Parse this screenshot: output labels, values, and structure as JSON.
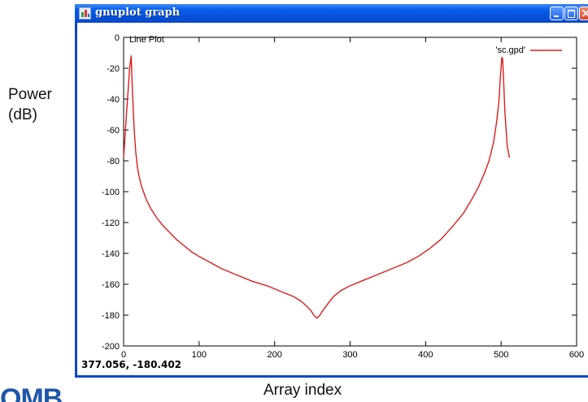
{
  "figure": {
    "outer_ylabel_line1": "Power",
    "outer_ylabel_line2": "(dB)",
    "outer_xlabel": "Array index",
    "logo_text": "OMB"
  },
  "window": {
    "title": "gnuplot graph",
    "icon": "gnuplot-graph-icon",
    "buttons": {
      "minimize": "minimize-icon",
      "maximize": "maximize-icon",
      "close": "close-icon"
    },
    "status_coords": "377.056, -180.402"
  },
  "colors": {
    "series": "#dd1c1c",
    "titlebar": "#0a5ee8",
    "frame": "#0a47c9"
  },
  "chart_data": {
    "type": "line",
    "title": "Line Plot",
    "xlabel": "",
    "ylabel": "",
    "xlim": [
      0,
      600
    ],
    "ylim": [
      -200,
      0
    ],
    "xticks": [
      0,
      100,
      200,
      300,
      400,
      500,
      600
    ],
    "yticks": [
      0,
      -20,
      -40,
      -60,
      -80,
      -100,
      -120,
      -140,
      -160,
      -180,
      -200
    ],
    "grid": false,
    "legend": "top-right",
    "series": [
      {
        "name": "'sc.gpd'",
        "color": "#dd1c1c",
        "x": [
          0,
          2,
          4,
          6,
          8,
          10,
          12,
          14,
          16,
          18,
          20,
          24,
          30,
          36,
          44,
          52,
          60,
          70,
          80,
          90,
          100,
          115,
          130,
          150,
          170,
          190,
          210,
          225,
          235,
          242,
          248,
          252,
          256,
          260,
          264,
          270,
          278,
          288,
          300,
          315,
          335,
          355,
          375,
          390,
          405,
          420,
          435,
          450,
          460,
          470,
          478,
          484,
          490,
          494,
          497,
          499,
          501,
          502,
          503,
          505,
          508,
          511
        ],
        "y": [
          -78,
          -63,
          -48,
          -34,
          -20,
          -12,
          -38,
          -60,
          -74,
          -83,
          -89,
          -97,
          -105,
          -111,
          -117,
          -122,
          -126,
          -131,
          -135,
          -139,
          -142,
          -146,
          -150,
          -154,
          -158,
          -161,
          -165,
          -168,
          -171,
          -174,
          -177,
          -180,
          -182,
          -180,
          -177,
          -173,
          -168,
          -164,
          -161,
          -158,
          -154,
          -150,
          -146,
          -142,
          -137,
          -131,
          -123,
          -114,
          -106,
          -97,
          -88,
          -80,
          -68,
          -55,
          -42,
          -26,
          -13,
          -14,
          -25,
          -48,
          -70,
          -78
        ]
      }
    ]
  }
}
